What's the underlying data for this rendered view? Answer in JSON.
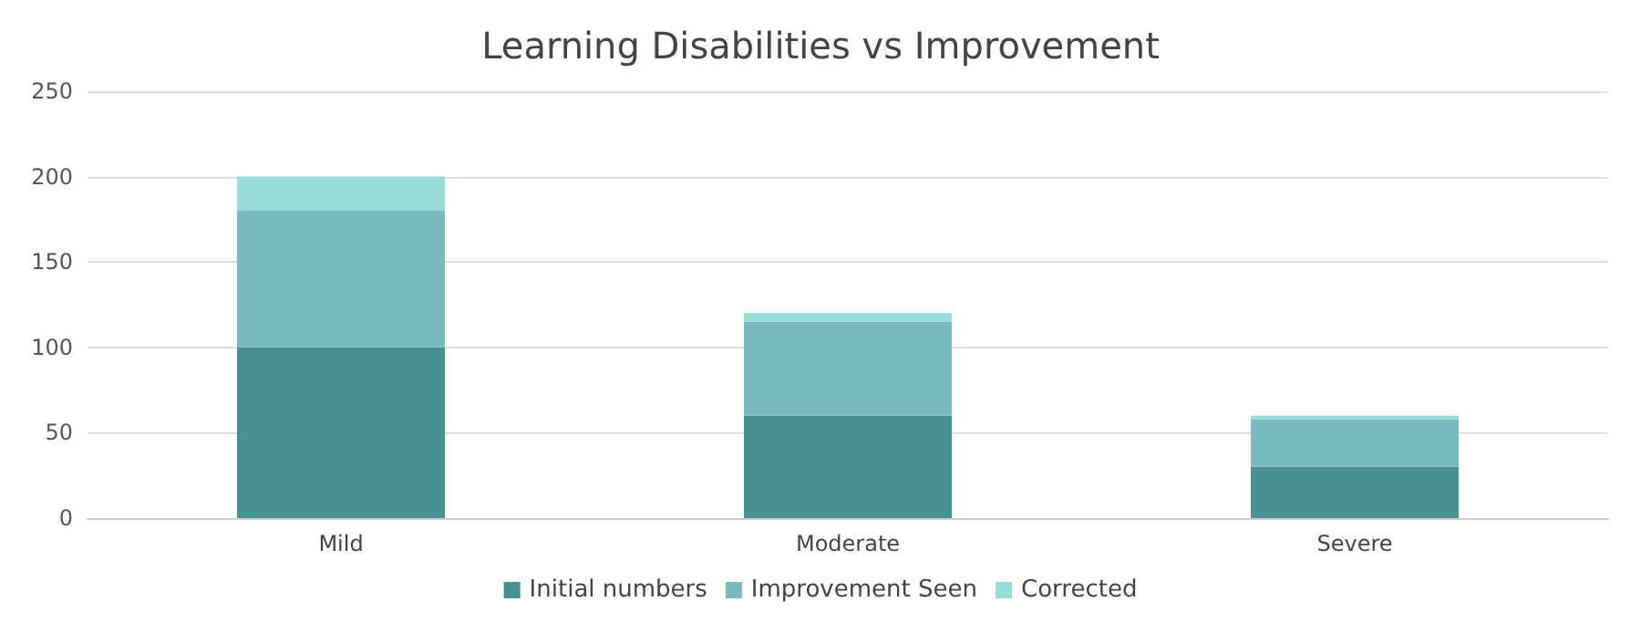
{
  "chart_data": {
    "type": "bar",
    "title": "Learning Disabilities vs Improvement",
    "categories": [
      "Mild",
      "Moderate",
      "Severe"
    ],
    "stacked": true,
    "series": [
      {
        "name": "Initial numbers",
        "color": "#459191",
        "values": [
          100,
          60,
          30
        ]
      },
      {
        "name": "Improvement Seen",
        "color": "#79babf",
        "values": [
          80,
          55,
          28
        ]
      },
      {
        "name": "Corrected",
        "color": "#98dbd9",
        "values": [
          20,
          5,
          2
        ]
      }
    ],
    "ylim": [
      0,
      250
    ],
    "yticks": [
      0,
      50,
      100,
      150,
      200,
      250
    ],
    "grid": "y",
    "legend": "bottom"
  }
}
